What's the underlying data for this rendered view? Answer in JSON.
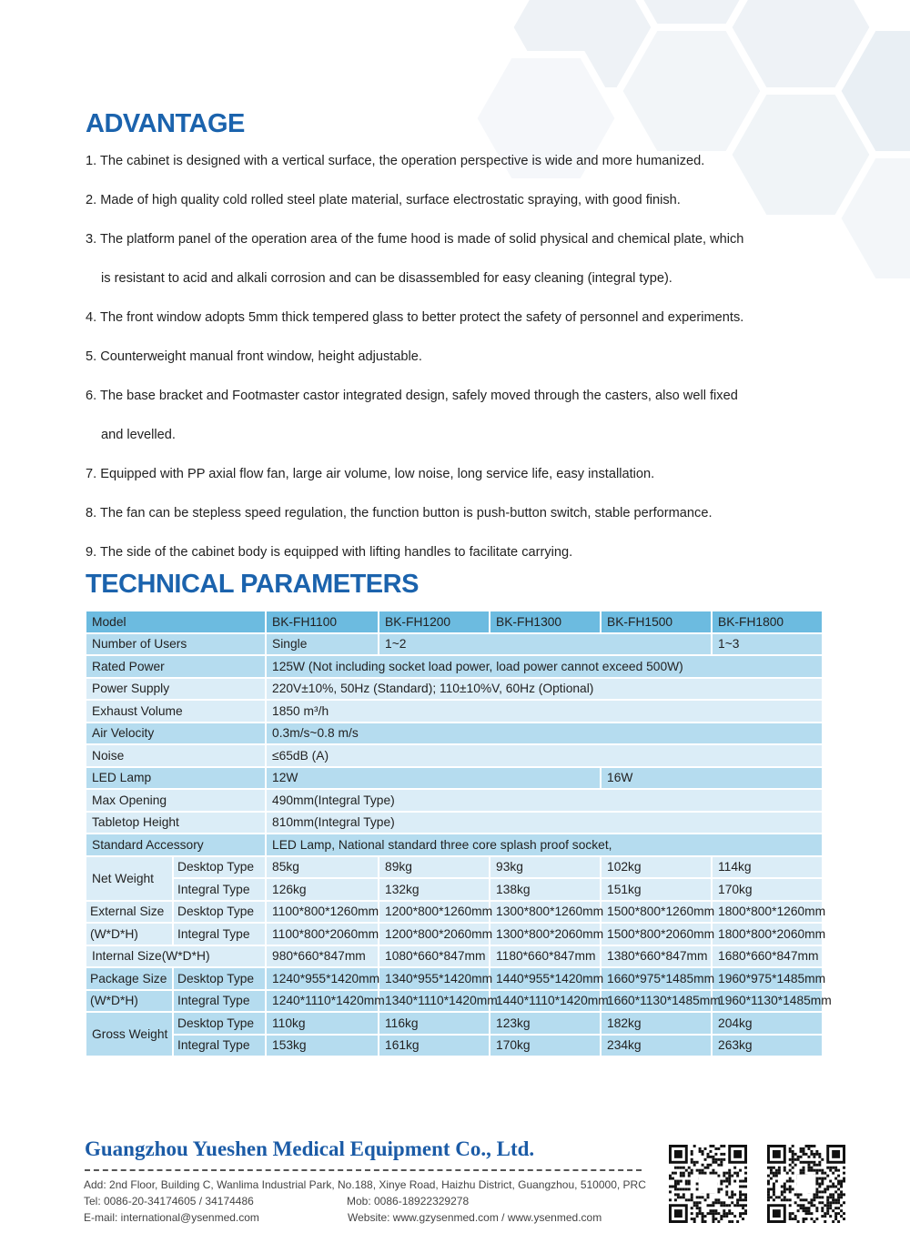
{
  "advantage": {
    "title": "ADVANTAGE",
    "items": [
      "1. The cabinet is designed with a vertical surface, the operation perspective is wide and more humanized.",
      "2. Made of high quality cold rolled steel plate material, surface electrostatic spraying, with good finish.",
      "3. The platform panel of the operation area of the fume hood is made of solid physical and chemical plate, which",
      "is resistant to acid and alkali corrosion and can be disassembled for easy cleaning (integral type).",
      "4. The front window adopts 5mm thick tempered glass to better protect the safety of personnel and experiments.",
      "5. Counterweight manual front window, height adjustable.",
      "6. The base bracket and Footmaster castor integrated design, safely moved through the casters, also well fixed",
      "and levelled.",
      "7. Equipped with PP axial flow fan, large air volume, low noise, long service life, easy installation.",
      "8. The fan can be stepless speed regulation, the function button is push-button switch, stable performance.",
      "9. The side of the cabinet body is equipped with lifting handles to facilitate carrying."
    ]
  },
  "technical": {
    "title": "TECHNICAL PARAMETERS",
    "rows": [
      {
        "tone": "dark",
        "cells": [
          {
            "t": "Model",
            "cs": 2
          },
          {
            "t": "BK-FH1100"
          },
          {
            "t": "BK-FH1200"
          },
          {
            "t": "BK-FH1300"
          },
          {
            "t": "BK-FH1500"
          },
          {
            "t": "BK-FH1800"
          }
        ]
      },
      {
        "tone": "mid",
        "cells": [
          {
            "t": "Number of Users",
            "cs": 2
          },
          {
            "t": "Single"
          },
          {
            "t": "1~2",
            "cs": 3
          },
          {
            "t": "1~3"
          }
        ]
      },
      {
        "tone": "mid",
        "cells": [
          {
            "t": "Rated Power",
            "cs": 2
          },
          {
            "t": "125W (Not including socket load power, load power cannot exceed 500W)",
            "cs": 5
          }
        ]
      },
      {
        "tone": "pale",
        "cells": [
          {
            "t": "Power Supply",
            "cs": 2
          },
          {
            "t": "220V±10%, 50Hz (Standard); 110±10%V, 60Hz (Optional)",
            "cs": 5
          }
        ]
      },
      {
        "tone": "pale",
        "cells": [
          {
            "t": "Exhaust Volume",
            "cs": 2
          },
          {
            "t": "1850 m³/h",
            "cs": 5
          }
        ]
      },
      {
        "tone": "mid",
        "cells": [
          {
            "t": "Air Velocity",
            "cs": 2
          },
          {
            "t": "0.3m/s~0.8 m/s",
            "cs": 5
          }
        ]
      },
      {
        "tone": "pale",
        "cells": [
          {
            "t": "Noise",
            "cs": 2
          },
          {
            "t": "≤65dB (A)",
            "cs": 5
          }
        ]
      },
      {
        "tone": "mid",
        "cells": [
          {
            "t": "LED Lamp",
            "cs": 2
          },
          {
            "t": "12W",
            "cs": 3
          },
          {
            "t": "16W",
            "cs": 2
          }
        ]
      },
      {
        "tone": "pale",
        "cells": [
          {
            "t": "Max Opening",
            "cs": 2
          },
          {
            "t": "490mm(Integral Type)",
            "cs": 5
          }
        ]
      },
      {
        "tone": "pale",
        "cells": [
          {
            "t": "Tabletop Height",
            "cs": 2
          },
          {
            "t": "810mm(Integral Type)",
            "cs": 5
          }
        ]
      },
      {
        "tone": "mid",
        "cells": [
          {
            "t": "Standard Accessory",
            "cs": 2
          },
          {
            "t": "LED Lamp, National standard three core splash proof socket,",
            "cs": 5
          }
        ]
      },
      {
        "tone": "pale",
        "cells": [
          {
            "t": "Net Weight",
            "rs": 2
          },
          {
            "t": "Desktop Type",
            "sub": true
          },
          {
            "t": "85kg"
          },
          {
            "t": "89kg"
          },
          {
            "t": "93kg"
          },
          {
            "t": "102kg"
          },
          {
            "t": "114kg"
          }
        ]
      },
      {
        "tone": "pale",
        "cells": [
          {
            "t": "Integral Type",
            "sub": true
          },
          {
            "t": "126kg"
          },
          {
            "t": "132kg"
          },
          {
            "t": "138kg"
          },
          {
            "t": "151kg"
          },
          {
            "t": "170kg"
          }
        ]
      },
      {
        "tone": "pale",
        "cells": [
          {
            "t": "External Size",
            "sub": true
          },
          {
            "t": "Desktop Type",
            "sub": true
          },
          {
            "t": "1100*800*1260mm"
          },
          {
            "t": "1200*800*1260mm"
          },
          {
            "t": "1300*800*1260mm"
          },
          {
            "t": "1500*800*1260mm"
          },
          {
            "t": "1800*800*1260mm"
          }
        ]
      },
      {
        "tone": "pale",
        "cells": [
          {
            "t": "(W*D*H)",
            "sub": true
          },
          {
            "t": "Integral Type",
            "sub": true
          },
          {
            "t": "1100*800*2060mm"
          },
          {
            "t": "1200*800*2060mm"
          },
          {
            "t": "1300*800*2060mm"
          },
          {
            "t": "1500*800*2060mm"
          },
          {
            "t": "1800*800*2060mm"
          }
        ]
      },
      {
        "tone": "pale",
        "cells": [
          {
            "t": "Internal Size(W*D*H)",
            "cs": 2
          },
          {
            "t": "980*660*847mm"
          },
          {
            "t": "1080*660*847mm"
          },
          {
            "t": "1180*660*847mm"
          },
          {
            "t": "1380*660*847mm"
          },
          {
            "t": "1680*660*847mm"
          }
        ]
      },
      {
        "tone": "mid",
        "cells": [
          {
            "t": "Package Size",
            "sub": true
          },
          {
            "t": "Desktop Type",
            "sub": true
          },
          {
            "t": "1240*955*1420mm"
          },
          {
            "t": "1340*955*1420mm"
          },
          {
            "t": "1440*955*1420mm"
          },
          {
            "t": "1660*975*1485mm"
          },
          {
            "t": "1960*975*1485mm"
          }
        ]
      },
      {
        "tone": "mid",
        "cells": [
          {
            "t": "(W*D*H)",
            "sub": true
          },
          {
            "t": "Integral Type",
            "sub": true
          },
          {
            "t": "1240*1110*1420mm"
          },
          {
            "t": "1340*1110*1420mm"
          },
          {
            "t": "1440*1110*1420mm"
          },
          {
            "t": "1660*1130*1485mm"
          },
          {
            "t": "1960*1130*1485mm"
          }
        ]
      },
      {
        "tone": "mid",
        "cells": [
          {
            "t": "Gross Weight",
            "rs": 2
          },
          {
            "t": "Desktop Type",
            "sub": true
          },
          {
            "t": "110kg"
          },
          {
            "t": "116kg"
          },
          {
            "t": "123kg"
          },
          {
            "t": "182kg"
          },
          {
            "t": "204kg"
          }
        ]
      },
      {
        "tone": "mid",
        "cells": [
          {
            "t": "Integral Type",
            "sub": true
          },
          {
            "t": "153kg"
          },
          {
            "t": "161kg"
          },
          {
            "t": "170kg"
          },
          {
            "t": "234kg"
          },
          {
            "t": "263kg"
          }
        ]
      }
    ]
  },
  "footer": {
    "company": "Guangzhou Yueshen Medical Equipment Co., Ltd.",
    "address": "Add: 2nd Floor, Building C, Wanlima Industrial Park, No.188, Xinye Road, Haizhu District, Guangzhou, 510000, PRC",
    "tel": "Tel: 0086-20-34174605 / 34174486",
    "mob": "Mob: 0086-18922329278",
    "email": "E-mail: international@ysenmed.com",
    "website": "Website: www.gzysenmed.com / www.ysenmed.com",
    "qr_codes": [
      "qr-code-icon",
      "qr-code-icon"
    ]
  },
  "colors": {
    "title": "#1b63ad",
    "header_row": "#6cbbe0",
    "row_mid": "#b5dcef",
    "row_pale": "#dbedf7"
  }
}
